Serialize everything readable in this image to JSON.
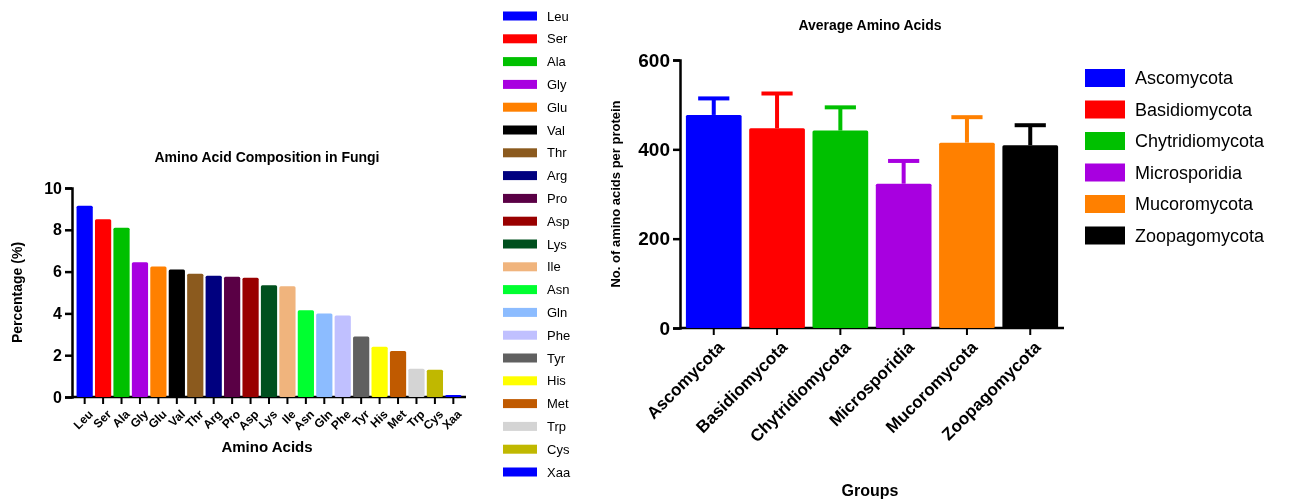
{
  "chart_data": [
    {
      "type": "bar",
      "title": "Amino Acid Composition in Fungi",
      "xlabel": "Amino Acids",
      "ylabel": "Percentage (%)",
      "categories": [
        "Leu",
        "Ser",
        "Ala",
        "Gly",
        "Glu",
        "Val",
        "Thr",
        "Arg",
        "Pro",
        "Asp",
        "Lys",
        "Ile",
        "Asn",
        "Gln",
        "Phe",
        "Tyr",
        "His",
        "Met",
        "Trp",
        "Cys",
        "Xaa"
      ],
      "series": [
        {
          "name": "Leu",
          "color": "#0000ff",
          "values": [
            9.15,
            null,
            null,
            null,
            null,
            null,
            null,
            null,
            null,
            null,
            null,
            null,
            null,
            null,
            null,
            null,
            null,
            null,
            null,
            null,
            null
          ]
        },
        {
          "name": "Ser",
          "color": "#ff0000",
          "values": [
            null,
            8.5,
            null,
            null,
            null,
            null,
            null,
            null,
            null,
            null,
            null,
            null,
            null,
            null,
            null,
            null,
            null,
            null,
            null,
            null,
            null
          ]
        },
        {
          "name": "Ala",
          "color": "#00c000",
          "values": [
            null,
            null,
            8.1,
            null,
            null,
            null,
            null,
            null,
            null,
            null,
            null,
            null,
            null,
            null,
            null,
            null,
            null,
            null,
            null,
            null,
            null
          ]
        },
        {
          "name": "Gly",
          "color": "#a800e0",
          "values": [
            null,
            null,
            null,
            6.45,
            null,
            null,
            null,
            null,
            null,
            null,
            null,
            null,
            null,
            null,
            null,
            null,
            null,
            null,
            null,
            null,
            null
          ]
        },
        {
          "name": "Glu",
          "color": "#ff8000",
          "values": [
            null,
            null,
            null,
            null,
            6.25,
            null,
            null,
            null,
            null,
            null,
            null,
            null,
            null,
            null,
            null,
            null,
            null,
            null,
            null,
            null,
            null
          ]
        },
        {
          "name": "Val",
          "color": "#000000",
          "values": [
            null,
            null,
            null,
            null,
            null,
            6.1,
            null,
            null,
            null,
            null,
            null,
            null,
            null,
            null,
            null,
            null,
            null,
            null,
            null,
            null,
            null
          ]
        },
        {
          "name": "Thr",
          "color": "#8b5a1e",
          "values": [
            null,
            null,
            null,
            null,
            null,
            null,
            5.9,
            null,
            null,
            null,
            null,
            null,
            null,
            null,
            null,
            null,
            null,
            null,
            null,
            null,
            null
          ]
        },
        {
          "name": "Arg",
          "color": "#00007f",
          "values": [
            null,
            null,
            null,
            null,
            null,
            null,
            null,
            5.8,
            null,
            null,
            null,
            null,
            null,
            null,
            null,
            null,
            null,
            null,
            null,
            null,
            null
          ]
        },
        {
          "name": "Pro",
          "color": "#5a0045",
          "values": [
            null,
            null,
            null,
            null,
            null,
            null,
            null,
            null,
            5.75,
            null,
            null,
            null,
            null,
            null,
            null,
            null,
            null,
            null,
            null,
            null,
            null
          ]
        },
        {
          "name": "Asp",
          "color": "#990000",
          "values": [
            null,
            null,
            null,
            null,
            null,
            null,
            null,
            null,
            null,
            5.7,
            null,
            null,
            null,
            null,
            null,
            null,
            null,
            null,
            null,
            null,
            null
          ]
        },
        {
          "name": "Lys",
          "color": "#00501e",
          "values": [
            null,
            null,
            null,
            null,
            null,
            null,
            null,
            null,
            null,
            null,
            5.35,
            null,
            null,
            null,
            null,
            null,
            null,
            null,
            null,
            null,
            null
          ]
        },
        {
          "name": "Ile",
          "color": "#f0b47d",
          "values": [
            null,
            null,
            null,
            null,
            null,
            null,
            null,
            null,
            null,
            null,
            null,
            5.3,
            null,
            null,
            null,
            null,
            null,
            null,
            null,
            null,
            null
          ]
        },
        {
          "name": "Asn",
          "color": "#00ff30",
          "values": [
            null,
            null,
            null,
            null,
            null,
            null,
            null,
            null,
            null,
            null,
            null,
            null,
            4.15,
            null,
            null,
            null,
            null,
            null,
            null,
            null,
            null
          ]
        },
        {
          "name": "Gln",
          "color": "#8cbcff",
          "values": [
            null,
            null,
            null,
            null,
            null,
            null,
            null,
            null,
            null,
            null,
            null,
            null,
            null,
            4.0,
            null,
            null,
            null,
            null,
            null,
            null,
            null
          ]
        },
        {
          "name": "Phe",
          "color": "#c0c0ff",
          "values": [
            null,
            null,
            null,
            null,
            null,
            null,
            null,
            null,
            null,
            null,
            null,
            null,
            null,
            null,
            3.9,
            null,
            null,
            null,
            null,
            null,
            null
          ]
        },
        {
          "name": "Tyr",
          "color": "#606060",
          "values": [
            null,
            null,
            null,
            null,
            null,
            null,
            null,
            null,
            null,
            null,
            null,
            null,
            null,
            null,
            null,
            2.9,
            null,
            null,
            null,
            null,
            null
          ]
        },
        {
          "name": "His",
          "color": "#ffff00",
          "values": [
            null,
            null,
            null,
            null,
            null,
            null,
            null,
            null,
            null,
            null,
            null,
            null,
            null,
            null,
            null,
            null,
            2.4,
            null,
            null,
            null,
            null
          ]
        },
        {
          "name": "Met",
          "color": "#c05a00",
          "values": [
            null,
            null,
            null,
            null,
            null,
            null,
            null,
            null,
            null,
            null,
            null,
            null,
            null,
            null,
            null,
            null,
            null,
            2.2,
            null,
            null,
            null
          ]
        },
        {
          "name": "Trp",
          "color": "#d4d4d4",
          "values": [
            null,
            null,
            null,
            null,
            null,
            null,
            null,
            null,
            null,
            null,
            null,
            null,
            null,
            null,
            null,
            null,
            null,
            null,
            1.35,
            null,
            null
          ]
        },
        {
          "name": "Cys",
          "color": "#c0b800",
          "values": [
            null,
            null,
            null,
            null,
            null,
            null,
            null,
            null,
            null,
            null,
            null,
            null,
            null,
            null,
            null,
            null,
            null,
            null,
            null,
            1.3,
            null
          ]
        },
        {
          "name": "Xaa",
          "color": "#0000ff",
          "values": [
            null,
            null,
            null,
            null,
            null,
            null,
            null,
            null,
            null,
            null,
            null,
            null,
            null,
            null,
            null,
            null,
            null,
            null,
            null,
            null,
            0.1
          ]
        }
      ],
      "ylim": [
        0,
        10
      ],
      "yticks": [
        0,
        2,
        4,
        6,
        8,
        10
      ],
      "legend": "right"
    },
    {
      "type": "bar",
      "title": "Average Amino Acids",
      "xlabel": "Groups",
      "ylabel": "No. of amino acids per protein",
      "categories": [
        "Ascomycota",
        "Basidiomycota",
        "Chytridiomycota",
        "Microsporidia",
        "Mucoromycota",
        "Zoopagomycota"
      ],
      "series": [
        {
          "name": "Ascomycota",
          "color": "#0000ff",
          "values": [
            477,
            null,
            null,
            null,
            null,
            null
          ],
          "errors": [
            [
              477,
              514
            ],
            null,
            null,
            null,
            null,
            null
          ]
        },
        {
          "name": "Basidiomycota",
          "color": "#ff0000",
          "values": [
            null,
            447,
            null,
            null,
            null,
            null
          ],
          "errors": [
            null,
            [
              447,
              525
            ],
            null,
            null,
            null,
            null
          ]
        },
        {
          "name": "Chytridiomycota",
          "color": "#00c000",
          "values": [
            null,
            null,
            442,
            null,
            null,
            null
          ],
          "errors": [
            null,
            null,
            [
              442,
              494
            ],
            null,
            null,
            null
          ]
        },
        {
          "name": "Microsporidia",
          "color": "#a800e0",
          "values": [
            null,
            null,
            null,
            323,
            null,
            null
          ],
          "errors": [
            null,
            null,
            null,
            [
              323,
              374
            ],
            null,
            null
          ]
        },
        {
          "name": "Mucoromycota",
          "color": "#ff8000",
          "values": [
            null,
            null,
            null,
            null,
            415,
            null
          ],
          "errors": [
            null,
            null,
            null,
            null,
            [
              415,
              472
            ],
            null
          ]
        },
        {
          "name": "Zoopagomycota",
          "color": "#000000",
          "values": [
            null,
            null,
            null,
            null,
            null,
            409
          ],
          "errors": [
            null,
            null,
            null,
            null,
            null,
            [
              409,
              454
            ]
          ]
        }
      ],
      "ylim": [
        0,
        600
      ],
      "yticks": [
        0,
        200,
        400,
        600
      ],
      "legend": "right"
    }
  ]
}
